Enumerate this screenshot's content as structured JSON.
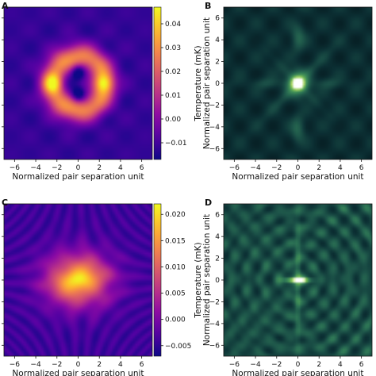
{
  "chart_data": [
    {
      "panel_label": "A",
      "type": "heatmap",
      "colormap": "plasma",
      "xlabel": "Normalized pair separation unit",
      "ylabel": "",
      "xlim": [
        -7,
        7
      ],
      "ylim": [
        -7,
        7
      ],
      "x_ticks": [
        "−6",
        "−4",
        "−2",
        "0",
        "2",
        "4",
        "6"
      ],
      "colorbar": {
        "label": "Temperature (mK)",
        "range": [
          -0.017,
          0.047
        ],
        "ticks": [
          0.04,
          0.03,
          0.02,
          0.01,
          0.0,
          -0.01
        ],
        "tick_labels": [
          "0.04",
          "0.03",
          "0.02",
          "0.01",
          "0.00",
          "−0.01"
        ]
      },
      "pattern": "ring of elevated temperature at radius ~2.5 with bright lobes near x=±2.5, y=0 and two dark holes at x=0, y=±1"
    },
    {
      "panel_label": "B",
      "type": "heatmap",
      "colormap": "viridis",
      "xlabel": "Normalized pair separation unit",
      "ylabel": "Normalized pair separation unit",
      "xlim": [
        -7,
        7
      ],
      "ylim": [
        -7,
        7
      ],
      "x_ticks": [
        "−6",
        "−4",
        "−2",
        "0",
        "2",
        "4",
        "6"
      ],
      "y_ticks": [
        "6",
        "4",
        "2",
        "0",
        "−2",
        "−4",
        "−6"
      ],
      "pattern": "bright central spot at origin with horizontal streak and faint oscillating background"
    },
    {
      "panel_label": "C",
      "type": "heatmap",
      "colormap": "plasma",
      "xlabel": "Normalized pair separation unit",
      "ylabel": "",
      "xlim": [
        -7,
        7
      ],
      "ylim": [
        -7,
        7
      ],
      "x_ticks": [
        "−6",
        "−4",
        "−2",
        "0",
        "2",
        "4",
        "6"
      ],
      "colorbar": {
        "label": "Temperature (mK)",
        "range": [
          -0.007,
          0.022
        ],
        "ticks": [
          0.02,
          0.015,
          0.01,
          0.005,
          0.0,
          -0.005
        ],
        "tick_labels": [
          "0.020",
          "0.015",
          "0.010",
          "0.005",
          "0.000",
          "−0.005"
        ]
      },
      "pattern": "broad warm blob centered at origin, elongated horizontally"
    },
    {
      "panel_label": "D",
      "type": "heatmap",
      "colormap": "viridis",
      "xlabel": "Normalized pair separation unit",
      "ylabel": "Normalized pair separation unit",
      "xlim": [
        -7,
        7
      ],
      "ylim": [
        -7,
        7
      ],
      "x_ticks": [
        "−6",
        "−4",
        "−2",
        "0",
        "2",
        "4",
        "6"
      ],
      "y_ticks": [
        "6",
        "4",
        "2",
        "0",
        "−2",
        "−4",
        "−6"
      ],
      "pattern": "bright horizontal streak at origin with concentric ring noise"
    }
  ]
}
